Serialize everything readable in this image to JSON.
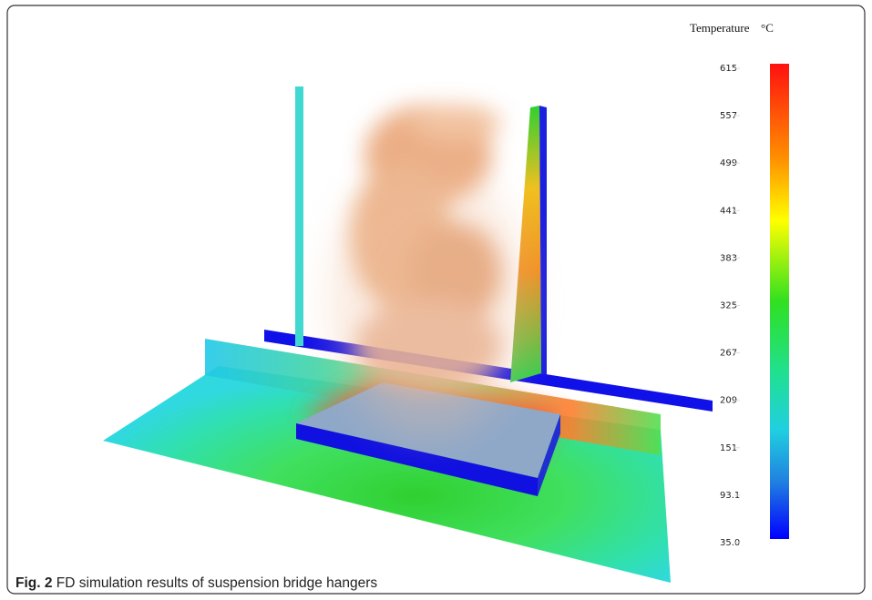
{
  "legend": {
    "title": "Temperature",
    "unit": "°C",
    "labels": [
      "615",
      "557",
      "499",
      "441",
      "383",
      "325",
      "267",
      "209",
      "151",
      "93.1",
      "35.0"
    ]
  },
  "caption": {
    "label": "Fig. 2",
    "text": "FD simulation results of suspension bridge hangers"
  }
}
